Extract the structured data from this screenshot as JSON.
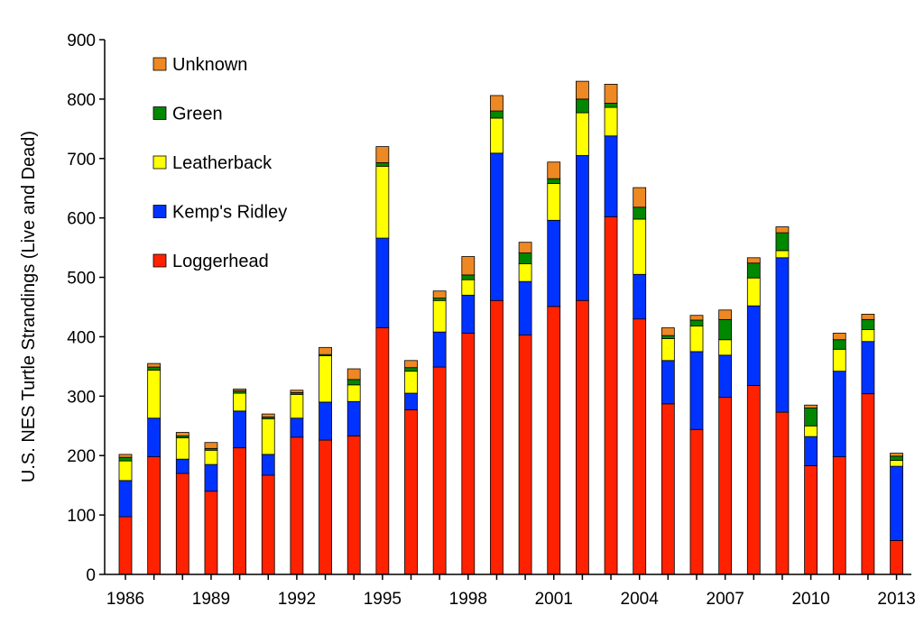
{
  "chart_data": {
    "type": "bar",
    "stacked": true,
    "ylabel": "U.S. NES Turtle Strandings (Live and Dead)",
    "xlabel": "",
    "ylim": [
      0,
      900
    ],
    "yticks": [
      0,
      100,
      200,
      300,
      400,
      500,
      600,
      700,
      800,
      900
    ],
    "x": [
      1986,
      1987,
      1988,
      1989,
      1990,
      1991,
      1992,
      1993,
      1994,
      1995,
      1996,
      1997,
      1998,
      1999,
      2000,
      2001,
      2002,
      2003,
      2004,
      2005,
      2006,
      2007,
      2008,
      2009,
      2010,
      2011,
      2012,
      2013
    ],
    "xtick_labels": [
      "1986",
      "1989",
      "1992",
      "1995",
      "1998",
      "2001",
      "2004",
      "2007",
      "2010",
      "2013"
    ],
    "legend_position": "top-left",
    "grid": false,
    "series": [
      {
        "name": "Loggerhead",
        "color": "#ff2200",
        "values": [
          97,
          198,
          170,
          140,
          213,
          167,
          231,
          226,
          233,
          415,
          277,
          349,
          406,
          461,
          403,
          451,
          461,
          602,
          430,
          287,
          244,
          298,
          318,
          273,
          183,
          198,
          304,
          57
        ]
      },
      {
        "name": "Kemp's Ridley",
        "color": "#0033ff",
        "values": [
          61,
          65,
          24,
          45,
          62,
          35,
          32,
          64,
          58,
          151,
          28,
          59,
          64,
          248,
          90,
          145,
          244,
          136,
          75,
          73,
          131,
          71,
          134,
          260,
          49,
          144,
          88,
          125
        ]
      },
      {
        "name": "Leatherback",
        "color": "#ffff00",
        "values": [
          33,
          81,
          36,
          24,
          30,
          60,
          40,
          78,
          28,
          121,
          37,
          53,
          26,
          59,
          30,
          62,
          72,
          48,
          93,
          37,
          43,
          26,
          47,
          12,
          18,
          37,
          20,
          10
        ]
      },
      {
        "name": "Green",
        "color": "#008800",
        "values": [
          6,
          5,
          3,
          3,
          4,
          3,
          3,
          2,
          9,
          6,
          6,
          4,
          8,
          12,
          18,
          8,
          23,
          7,
          20,
          5,
          10,
          34,
          25,
          30,
          30,
          16,
          17,
          7
        ]
      },
      {
        "name": "Unknown",
        "color": "#ee8822",
        "values": [
          5,
          6,
          6,
          10,
          3,
          5,
          4,
          12,
          18,
          27,
          12,
          12,
          31,
          26,
          18,
          28,
          30,
          32,
          33,
          13,
          8,
          16,
          9,
          10,
          5,
          11,
          9,
          5
        ]
      }
    ]
  }
}
